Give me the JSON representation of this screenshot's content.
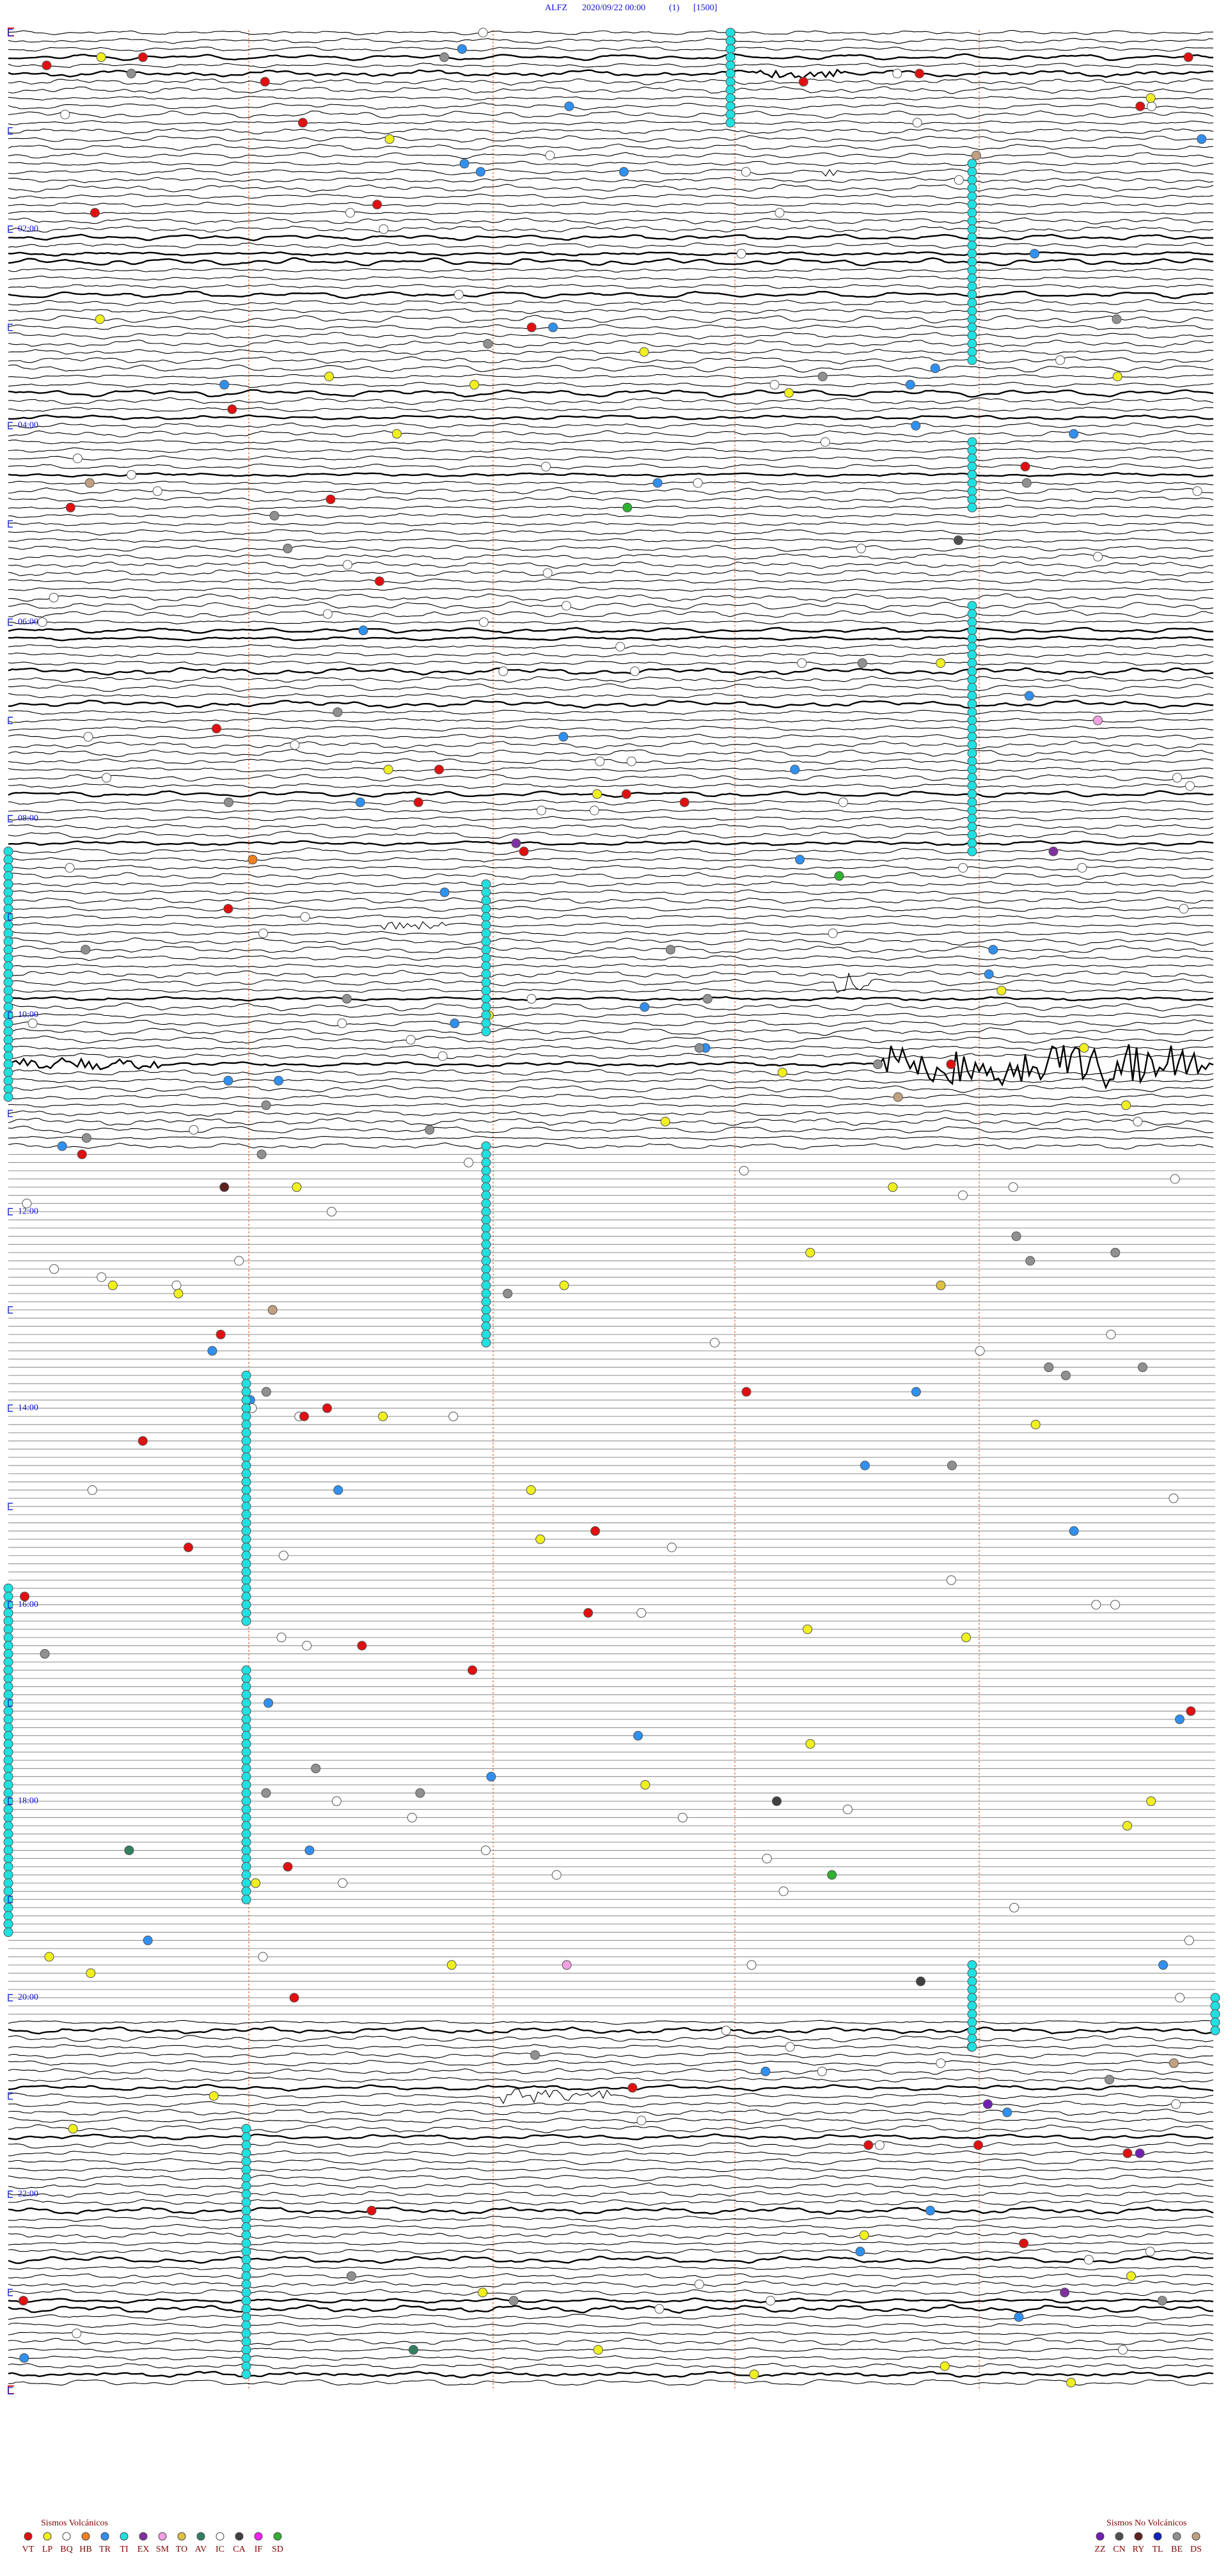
{
  "header": {
    "station": "ALFZ",
    "datetime": "2020/09/22 00:00",
    "channel": "(1)",
    "scale": "[1500]"
  },
  "hour_labels": [
    {
      "hour": 2,
      "label": "02:00"
    },
    {
      "hour": 4,
      "label": "04:00"
    },
    {
      "hour": 6,
      "label": "06:00"
    },
    {
      "hour": 8,
      "label": "08:00"
    },
    {
      "hour": 10,
      "label": "10:00"
    },
    {
      "hour": 12,
      "label": "12:00"
    },
    {
      "hour": 14,
      "label": "14:00"
    },
    {
      "hour": 16,
      "label": "16:00"
    },
    {
      "hour": 18,
      "label": "18:00"
    },
    {
      "hour": 20,
      "label": "20:00"
    },
    {
      "hour": 22,
      "label": "22:00"
    }
  ],
  "legend_volcanic": {
    "title": "Sismos Volcánicos",
    "items": [
      {
        "code": "VT",
        "color": "#e01010"
      },
      {
        "code": "LP",
        "color": "#f0f020"
      },
      {
        "code": "BQ",
        "color": "#ffffff"
      },
      {
        "code": "HB",
        "color": "#f08020"
      },
      {
        "code": "TR",
        "color": "#3090f0"
      },
      {
        "code": "TI",
        "color": "#20e0e0"
      },
      {
        "code": "EX",
        "color": "#8030a0"
      },
      {
        "code": "SM",
        "color": "#f0a0e0"
      },
      {
        "code": "TO",
        "color": "#e0c040"
      },
      {
        "code": "AV",
        "color": "#308060"
      },
      {
        "code": "IC",
        "color": "#ffffff"
      },
      {
        "code": "CA",
        "color": "#404040"
      },
      {
        "code": "IF",
        "color": "#f020f0"
      },
      {
        "code": "SD",
        "color": "#30b030"
      }
    ]
  },
  "legend_non_volcanic": {
    "title": "Sismos No Volcánicos",
    "items": [
      {
        "code": "ZZ",
        "color": "#7020b0"
      },
      {
        "code": "CN",
        "color": "#505050"
      },
      {
        "code": "RY",
        "color": "#602020"
      },
      {
        "code": "TL",
        "color": "#1020c0"
      },
      {
        "code": "BE",
        "color": "#909090"
      },
      {
        "code": "DS",
        "color": "#c0a080"
      }
    ]
  }
}
